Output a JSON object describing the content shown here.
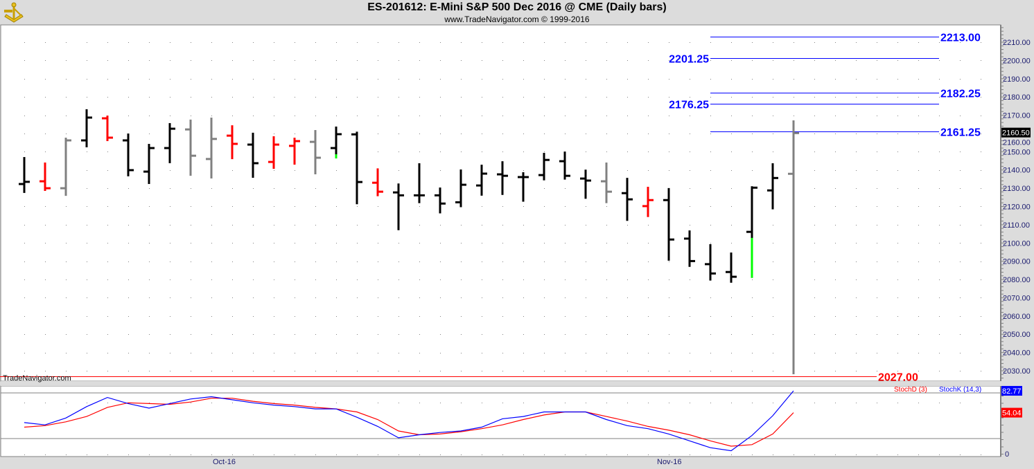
{
  "header": {
    "title": "ES-201612:  E-Mini S&P 500 Dec 2016 @ CME  (Daily bars)",
    "subtitle": "www.TradeNavigator.com © 1999-2016",
    "logo_icon": "sextant-icon"
  },
  "watermark": "TradeNavigator.com",
  "colors": {
    "up": "#000000",
    "down": "#ff0000",
    "neutral": "#808080",
    "highlight": "#00ff00",
    "level": "#0000ff",
    "support": "#ff0000",
    "stochK": "#0000ff",
    "stochD": "#ff0000",
    "axis_text": "#1a1a6e"
  },
  "x_labels": [
    "Oct-16",
    "Nov-16"
  ],
  "chart_data": [
    {
      "type": "ohlc",
      "title": "ES-201612 Daily bars",
      "ylim": [
        2022,
        2222
      ],
      "y_ticks": [
        "2210.00",
        "2200.00",
        "2190.00",
        "2180.00",
        "2170.00",
        "2160.00",
        "2150.00",
        "2140.00",
        "2130.00",
        "2120.00",
        "2110.00",
        "2100.00",
        "2090.00",
        "2080.00",
        "2070.00",
        "2060.00",
        "2050.00",
        "2040.00",
        "2030.00"
      ],
      "last_price": "2160.50",
      "bars": [
        {
          "o": 2132.3,
          "h": 2146.7,
          "l": 2127.8,
          "c": 2133.5,
          "color": "up"
        },
        {
          "o": 2133.8,
          "h": 2143.7,
          "l": 2128.9,
          "c": 2130.0,
          "color": "down"
        },
        {
          "o": 2130.0,
          "h": 2157.3,
          "l": 2126.2,
          "c": 2156.2,
          "color": "neutral"
        },
        {
          "o": 2156.2,
          "h": 2172.9,
          "l": 2152.8,
          "c": 2168.7,
          "color": "up"
        },
        {
          "o": 2168.3,
          "h": 2169.4,
          "l": 2156.2,
          "c": 2157.7,
          "color": "down"
        },
        {
          "o": 2156.2,
          "h": 2159.6,
          "l": 2136.9,
          "c": 2139.9,
          "color": "up"
        },
        {
          "o": 2139.1,
          "h": 2153.9,
          "l": 2132.7,
          "c": 2152.0,
          "color": "up"
        },
        {
          "o": 2152.0,
          "h": 2165.3,
          "l": 2144.1,
          "c": 2162.6,
          "color": "up"
        },
        {
          "o": 2162.2,
          "h": 2167.2,
          "l": 2137.2,
          "c": 2147.8,
          "color": "neutral"
        },
        {
          "o": 2146.0,
          "h": 2168.3,
          "l": 2135.7,
          "c": 2157.0,
          "color": "neutral"
        },
        {
          "o": 2158.8,
          "h": 2164.1,
          "l": 2146.3,
          "c": 2154.3,
          "color": "down"
        },
        {
          "o": 2153.9,
          "h": 2160.0,
          "l": 2136.1,
          "c": 2143.7,
          "color": "up"
        },
        {
          "o": 2144.4,
          "h": 2158.1,
          "l": 2141.0,
          "c": 2153.9,
          "color": "down"
        },
        {
          "o": 2153.2,
          "h": 2157.3,
          "l": 2143.3,
          "c": 2155.8,
          "color": "down"
        },
        {
          "o": 2155.4,
          "h": 2161.5,
          "l": 2138.0,
          "c": 2146.7,
          "color": "neutral"
        },
        {
          "o": 2152.0,
          "h": 2163.4,
          "l": 2146.7,
          "c": 2159.6,
          "color": "up",
          "highlight_to": 2148.6
        },
        {
          "o": 2159.5,
          "h": 2160.6,
          "l": 2121.6,
          "c": 2133.4,
          "color": "up"
        },
        {
          "o": 2133.0,
          "h": 2140.5,
          "l": 2126.0,
          "c": 2128.1,
          "color": "down"
        },
        {
          "o": 2127.7,
          "h": 2132.2,
          "l": 2107.4,
          "c": 2126.1,
          "color": "up"
        },
        {
          "o": 2126.1,
          "h": 2143.3,
          "l": 2122.2,
          "c": 2126.1,
          "color": "up"
        },
        {
          "o": 2126.1,
          "h": 2130.0,
          "l": 2116.6,
          "c": 2121.6,
          "color": "up"
        },
        {
          "o": 2122.3,
          "h": 2139.9,
          "l": 2120.0,
          "c": 2131.9,
          "color": "up"
        },
        {
          "o": 2131.5,
          "h": 2142.5,
          "l": 2126.3,
          "c": 2138.0,
          "color": "up"
        },
        {
          "o": 2137.6,
          "h": 2144.4,
          "l": 2126.7,
          "c": 2136.8,
          "color": "up"
        },
        {
          "o": 2136.1,
          "h": 2138.4,
          "l": 2123.0,
          "c": 2136.1,
          "color": "up"
        },
        {
          "o": 2137.2,
          "h": 2149.0,
          "l": 2134.7,
          "c": 2145.5,
          "color": "up"
        },
        {
          "o": 2144.8,
          "h": 2149.7,
          "l": 2135.1,
          "c": 2136.8,
          "color": "up"
        },
        {
          "o": 2135.3,
          "h": 2139.8,
          "l": 2124.6,
          "c": 2134.2,
          "color": "up"
        },
        {
          "o": 2133.8,
          "h": 2143.7,
          "l": 2122.2,
          "c": 2128.1,
          "color": "neutral"
        },
        {
          "o": 2127.3,
          "h": 2135.3,
          "l": 2112.5,
          "c": 2123.9,
          "color": "up"
        },
        {
          "o": 2120.2,
          "h": 2130.4,
          "l": 2114.6,
          "c": 2123.5,
          "color": "down"
        },
        {
          "o": 2123.5,
          "h": 2129.7,
          "l": 2090.7,
          "c": 2101.9,
          "color": "up"
        },
        {
          "o": 2102.4,
          "h": 2106.5,
          "l": 2087.3,
          "c": 2090.1,
          "color": "up"
        },
        {
          "o": 2088.4,
          "h": 2099.0,
          "l": 2079.8,
          "c": 2083.3,
          "color": "up"
        },
        {
          "o": 2084.1,
          "h": 2094.4,
          "l": 2078.6,
          "c": 2081.5,
          "color": "up"
        },
        {
          "o": 2106.1,
          "h": 2130.7,
          "l": 2081.3,
          "c": 2130.3,
          "color": "up",
          "highlight_to": 2102.8
        },
        {
          "o": 2128.8,
          "h": 2143.3,
          "l": 2118.8,
          "c": 2135.6,
          "color": "up"
        },
        {
          "o": 2137.9,
          "h": 2166.8,
          "l": 2028.5,
          "c": 2160.2,
          "color": "neutral"
        }
      ],
      "levels": [
        {
          "value": 2213.0,
          "label": "2213.00",
          "side": "right",
          "color": "level"
        },
        {
          "value": 2201.25,
          "label": "2201.25",
          "side": "left",
          "color": "level"
        },
        {
          "value": 2182.25,
          "label": "2182.25",
          "side": "right",
          "color": "level"
        },
        {
          "value": 2176.25,
          "label": "2176.25",
          "side": "left",
          "color": "level"
        },
        {
          "value": 2161.25,
          "label": "2161.25",
          "side": "right",
          "color": "level"
        },
        {
          "value": 2027.0,
          "label": "2027.00",
          "side": "right",
          "color": "support",
          "full": true
        }
      ]
    },
    {
      "type": "line",
      "title": "Stochastics",
      "ylim": [
        0,
        100
      ],
      "y_ticks": [
        "0"
      ],
      "guides": [
        20,
        80
      ],
      "series": [
        {
          "name": "StochD (3)",
          "color": "stochD",
          "last": "54.04",
          "values": [
            35,
            37,
            42,
            49,
            61,
            67,
            66,
            65,
            68,
            73,
            73,
            69,
            66,
            64,
            61,
            59,
            55,
            45,
            30,
            25,
            26,
            29,
            33,
            38,
            45,
            51,
            55,
            55,
            49,
            43,
            36,
            31,
            25,
            17,
            10,
            12,
            26,
            54.04
          ]
        },
        {
          "name": "StochK (14,3)",
          "color": "stochK",
          "last": "82.77",
          "values": [
            41,
            38,
            47,
            62,
            74,
            66,
            60,
            66,
            72,
            75,
            71,
            67,
            64,
            62,
            59,
            59,
            48,
            36,
            21,
            25,
            28,
            30,
            35,
            46,
            49,
            55,
            55,
            55,
            45,
            37,
            33,
            26,
            17,
            8,
            4,
            24,
            50,
            82.77
          ]
        }
      ]
    }
  ]
}
